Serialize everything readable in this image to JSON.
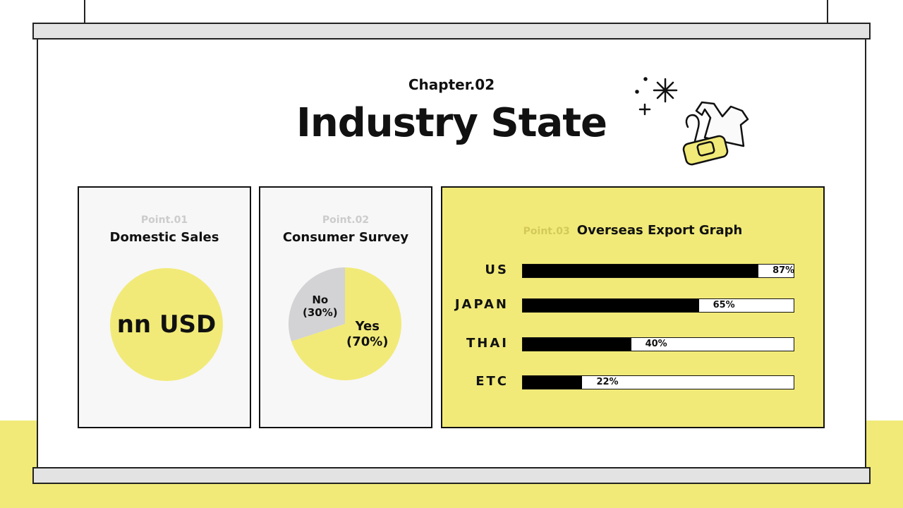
{
  "header": {
    "chapter": "Chapter.02",
    "title": "Industry State"
  },
  "colors": {
    "accent": "#f1ea78",
    "card_bg": "#f7f7f8",
    "pie_no": "#d3d2d4"
  },
  "illustration": {
    "icon": "dress-and-handbag-with-sparkles"
  },
  "cards": [
    {
      "point": "Point.01",
      "title": "Domestic Sales",
      "value": "nn USD"
    },
    {
      "point": "Point.02",
      "title": "Consumer Survey"
    },
    {
      "point": "Point.03",
      "title": "Overseas Export Graph"
    }
  ],
  "chart_data": [
    {
      "type": "pie",
      "title": "Consumer Survey",
      "slices": [
        {
          "label": "Yes",
          "pct_label": "(70%)",
          "value": 70
        },
        {
          "label": "No",
          "pct_label": "(30%)",
          "value": 30
        }
      ]
    },
    {
      "type": "bar",
      "orientation": "horizontal",
      "title": "Overseas Export Graph",
      "categories": [
        "US",
        "JAPAN",
        "THAI",
        "ETC"
      ],
      "values": [
        87,
        65,
        40,
        22
      ],
      "value_labels": [
        "87%",
        "65%",
        "40%",
        "22%"
      ],
      "xlim": [
        0,
        100
      ]
    }
  ]
}
